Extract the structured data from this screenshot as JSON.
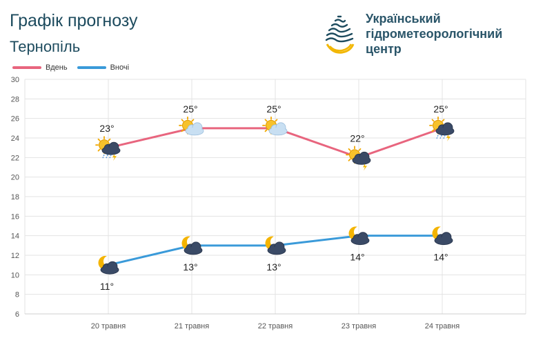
{
  "header": {
    "title": "Графік прогнозу",
    "city": "Тернопіль"
  },
  "org": {
    "line1": "Український",
    "line2": "гідрометеорологічний",
    "line3": "центр"
  },
  "colors": {
    "day": "#e8657e",
    "night": "#3a9ad9",
    "brand": "#1d4b5e",
    "logo_yellow": "#f2b705"
  },
  "chart_data": {
    "type": "line",
    "categories": [
      "20 травня",
      "21 травня",
      "22 травня",
      "23 травня",
      "24 травня"
    ],
    "ylim": [
      6,
      30
    ],
    "yticks": [
      "6",
      "8",
      "10",
      "12",
      "14",
      "16",
      "18",
      "20",
      "22",
      "24",
      "26",
      "28",
      "30"
    ],
    "grid": true,
    "legend": "top-left",
    "series": [
      {
        "name": "Вдень",
        "values": [
          23,
          25,
          25,
          22,
          25
        ],
        "labels": [
          "23°",
          "25°",
          "25°",
          "22°",
          "25°"
        ],
        "icons": [
          "sun-cloud-rain-thunder-icon",
          "sun-cloud-icon",
          "sun-cloud-icon",
          "sun-cloud-thunder-icon",
          "sun-cloud-rain-thunder-icon"
        ]
      },
      {
        "name": "Вночі",
        "values": [
          11,
          13,
          13,
          14,
          14
        ],
        "labels": [
          "11°",
          "13°",
          "13°",
          "14°",
          "14°"
        ],
        "icons": [
          "moon-cloud-icon",
          "moon-cloud-icon",
          "moon-cloud-icon",
          "moon-cloud-icon",
          "moon-cloud-icon"
        ]
      }
    ]
  }
}
